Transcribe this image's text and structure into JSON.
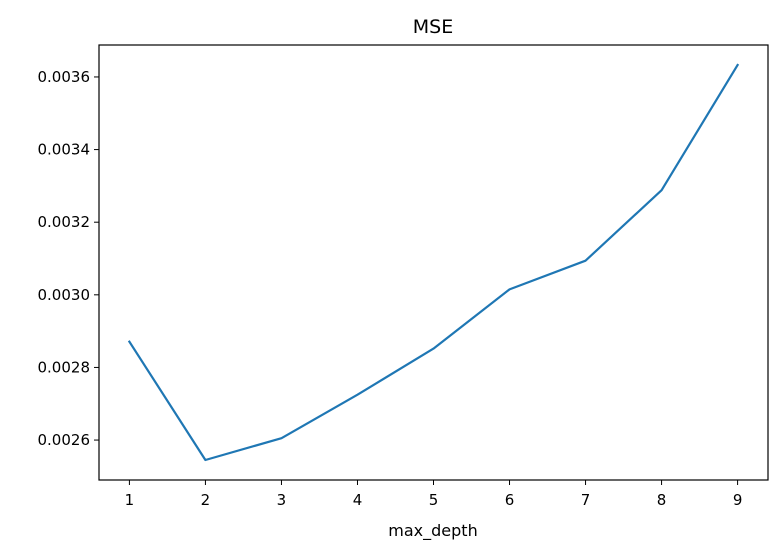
{
  "chart_data": {
    "type": "line",
    "title": "MSE",
    "xlabel": "max_depth",
    "ylabel": "",
    "x": [
      1,
      2,
      3,
      4,
      5,
      6,
      7,
      8,
      9
    ],
    "xticks": [
      "1",
      "2",
      "3",
      "4",
      "5",
      "6",
      "7",
      "8",
      "9"
    ],
    "series": [
      {
        "values": [
          0.002871,
          0.002545,
          0.002605,
          0.002725,
          0.002852,
          0.003015,
          0.003094,
          0.003288,
          0.003633
        ],
        "color": "#1f77b4"
      }
    ],
    "yticks": [
      0.0026,
      0.0028,
      0.003,
      0.0032,
      0.0034,
      0.0036
    ],
    "ytick_labels": [
      "0.0026",
      "0.0028",
      "0.0030",
      "0.0032",
      "0.0034",
      "0.0036"
    ],
    "xlim": [
      0.6,
      9.4
    ],
    "ylim": [
      0.00249,
      0.003688
    ],
    "grid": false,
    "legend": "none"
  }
}
